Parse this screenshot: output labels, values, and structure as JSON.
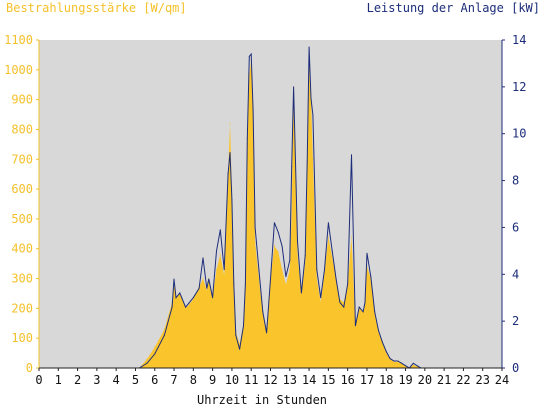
{
  "chart_data": {
    "type": "area",
    "title": "",
    "left_axis_label": "Bestrahlungsstärke [W/qm]",
    "right_axis_label": "Leistung der Anlage [kW]",
    "xlabel": "Uhrzeit in Stunden",
    "xlim": [
      0,
      24
    ],
    "ylim_left": [
      0,
      1100
    ],
    "ylim_right": [
      0,
      14
    ],
    "x_ticks": [
      "0",
      "1",
      "2",
      "3",
      "4",
      "5",
      "6",
      "7",
      "8",
      "9",
      "10",
      "11",
      "12",
      "13",
      "14",
      "15",
      "16",
      "17",
      "18",
      "19",
      "20",
      "21",
      "22",
      "23",
      "24"
    ],
    "y_ticks_left": [
      "0",
      "100",
      "200",
      "300",
      "400",
      "500",
      "600",
      "700",
      "800",
      "900",
      "1000",
      "1100"
    ],
    "y_ticks_right": [
      "0",
      "2",
      "4",
      "6",
      "8",
      "10",
      "12",
      "14"
    ],
    "grid": false,
    "legend": "none",
    "colors": {
      "irradiance_fill": "#f9c42c",
      "power_line": "#1d2d7a",
      "plot_background": "#d8d8d8",
      "left_axis": "#f5c12a",
      "right_axis": "#1d2d7a"
    },
    "series": [
      {
        "name": "Bestrahlungsstärke [W/qm]",
        "axis": "left",
        "style": "area",
        "x": [
          5.2,
          5.6,
          6.0,
          6.5,
          6.9,
          7.0,
          7.1,
          7.3,
          7.6,
          8.0,
          8.3,
          8.5,
          8.7,
          8.8,
          9.0,
          9.2,
          9.4,
          9.6,
          9.8,
          9.9,
          10.0,
          10.1,
          10.2,
          10.4,
          10.6,
          10.7,
          10.8,
          10.9,
          11.0,
          11.1,
          11.2,
          11.4,
          11.6,
          11.8,
          12.0,
          12.2,
          12.4,
          12.6,
          12.8,
          13.0,
          13.1,
          13.2,
          13.4,
          13.6,
          13.8,
          13.9,
          14.0,
          14.1,
          14.2,
          14.4,
          14.6,
          14.8,
          15.0,
          15.2,
          15.4,
          15.6,
          15.8,
          16.0,
          16.2,
          16.4,
          16.6,
          16.8,
          16.9,
          17.0,
          17.2,
          17.4,
          17.6,
          17.8,
          18.0,
          18.2,
          18.4,
          18.6,
          18.8,
          19.0,
          19.2,
          19.4,
          19.6,
          19.8,
          20.0,
          20.2
        ],
        "values": [
          0,
          30,
          70,
          130,
          220,
          280,
          240,
          250,
          200,
          230,
          270,
          300,
          260,
          300,
          240,
          330,
          380,
          310,
          650,
          820,
          600,
          300,
          120,
          80,
          150,
          300,
          800,
          980,
          1030,
          850,
          420,
          300,
          180,
          130,
          300,
          410,
          390,
          330,
          280,
          330,
          520,
          940,
          380,
          250,
          350,
          680,
          1030,
          900,
          700,
          300,
          220,
          320,
          440,
          370,
          300,
          230,
          220,
          280,
          440,
          150,
          200,
          190,
          220,
          340,
          300,
          180,
          120,
          90,
          50,
          30,
          20,
          20,
          15,
          5,
          0,
          10,
          5,
          0,
          0,
          0
        ]
      },
      {
        "name": "Leistung der Anlage [kW]",
        "axis": "right",
        "style": "line",
        "x": [
          5.2,
          5.6,
          6.0,
          6.5,
          6.9,
          7.0,
          7.1,
          7.3,
          7.6,
          8.0,
          8.3,
          8.5,
          8.7,
          8.8,
          9.0,
          9.2,
          9.4,
          9.6,
          9.8,
          9.9,
          10.0,
          10.1,
          10.2,
          10.4,
          10.6,
          10.7,
          10.8,
          10.9,
          11.0,
          11.1,
          11.2,
          11.4,
          11.6,
          11.8,
          12.0,
          12.2,
          12.4,
          12.6,
          12.8,
          13.0,
          13.1,
          13.2,
          13.4,
          13.6,
          13.8,
          13.9,
          14.0,
          14.1,
          14.2,
          14.4,
          14.6,
          14.8,
          15.0,
          15.2,
          15.4,
          15.6,
          15.8,
          16.0,
          16.2,
          16.4,
          16.6,
          16.8,
          16.9,
          17.0,
          17.2,
          17.4,
          17.6,
          17.8,
          18.0,
          18.2,
          18.4,
          18.6,
          18.8,
          19.0,
          19.2,
          19.4,
          19.6,
          19.8,
          20.0,
          20.2
        ],
        "values": [
          0,
          0.2,
          0.6,
          1.4,
          2.6,
          3.8,
          3.0,
          3.2,
          2.6,
          3.0,
          3.4,
          4.7,
          3.4,
          3.8,
          3.0,
          5.0,
          5.9,
          4.2,
          8.3,
          9.2,
          7.2,
          3.6,
          1.4,
          0.8,
          1.8,
          3.6,
          9.8,
          13.3,
          13.4,
          11.0,
          6.0,
          4.2,
          2.4,
          1.5,
          3.8,
          6.2,
          5.8,
          5.2,
          3.9,
          4.6,
          8.6,
          12.0,
          5.4,
          3.2,
          4.8,
          8.8,
          13.7,
          11.5,
          10.8,
          4.2,
          3.0,
          4.2,
          6.2,
          5.0,
          3.8,
          2.8,
          2.6,
          3.6,
          9.1,
          1.8,
          2.6,
          2.4,
          2.8,
          4.9,
          3.9,
          2.4,
          1.6,
          1.1,
          0.7,
          0.4,
          0.3,
          0.3,
          0.2,
          0.1,
          0,
          0.2,
          0.1,
          0,
          0,
          0
        ]
      }
    ]
  }
}
